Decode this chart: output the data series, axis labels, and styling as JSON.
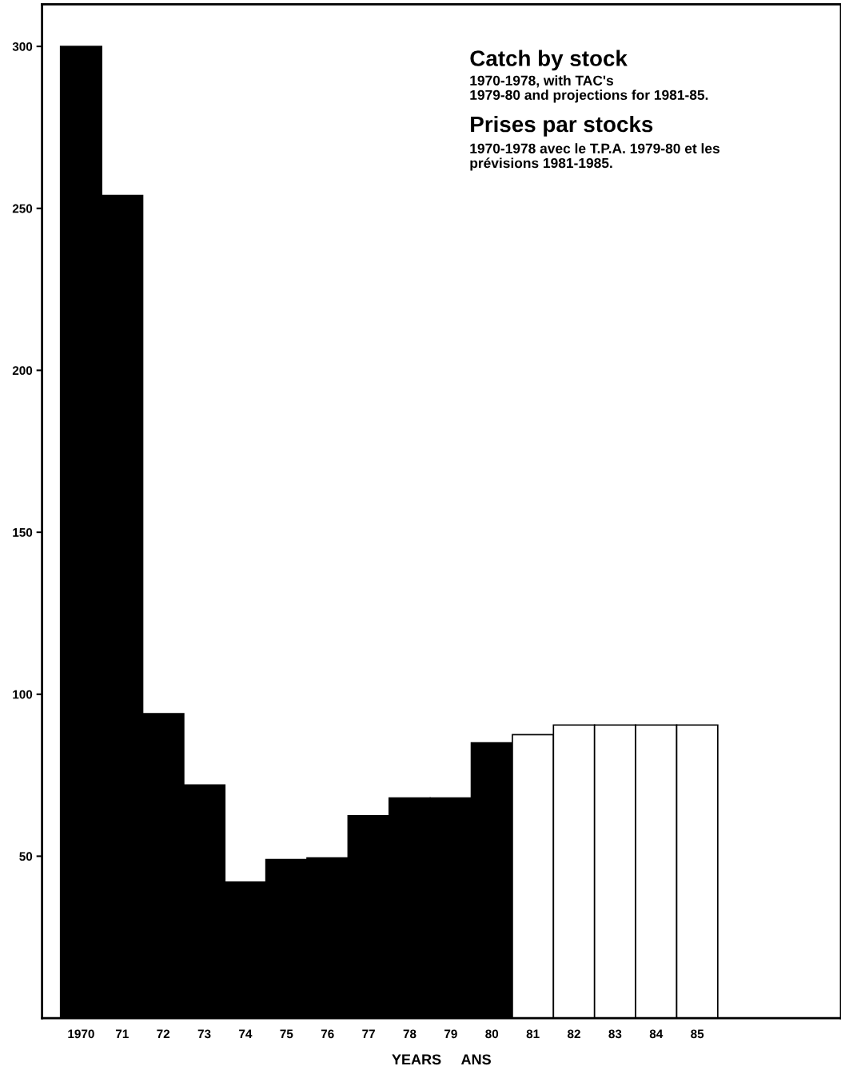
{
  "chart_data": {
    "type": "bar",
    "title": "Catch by stock",
    "subtitle": "1970-1978, with TAC's\n1979-80 and projections for 1981-85.",
    "annotations": [
      "Prises par stocks",
      "1970-1978 avec le T.P.A. 1979-80 et les\nprévisions 1981-1985."
    ],
    "xlabel": "YEARS     ANS",
    "categories": [
      "1970",
      "71",
      "72",
      "73",
      "74",
      "75",
      "76",
      "77",
      "78",
      "79",
      "80",
      "81",
      "82",
      "83",
      "84",
      "85"
    ],
    "values": [
      300,
      254,
      94,
      72,
      42,
      49,
      49.5,
      62.5,
      68,
      68,
      85,
      87.5,
      90.5,
      90.5,
      90.5,
      90.5
    ],
    "colors": [
      "#000000",
      "#000000",
      "#000000",
      "#000000",
      "#000000",
      "#000000",
      "#000000",
      "#000000",
      "#000000",
      "#000000",
      "#000000",
      "#ffffff",
      "#ffffff",
      "#ffffff",
      "#ffffff",
      "#ffffff"
    ],
    "ylim": [
      0,
      313
    ],
    "yticks": [
      50,
      100,
      150,
      200,
      250,
      300
    ],
    "grid": false,
    "legend": false
  }
}
